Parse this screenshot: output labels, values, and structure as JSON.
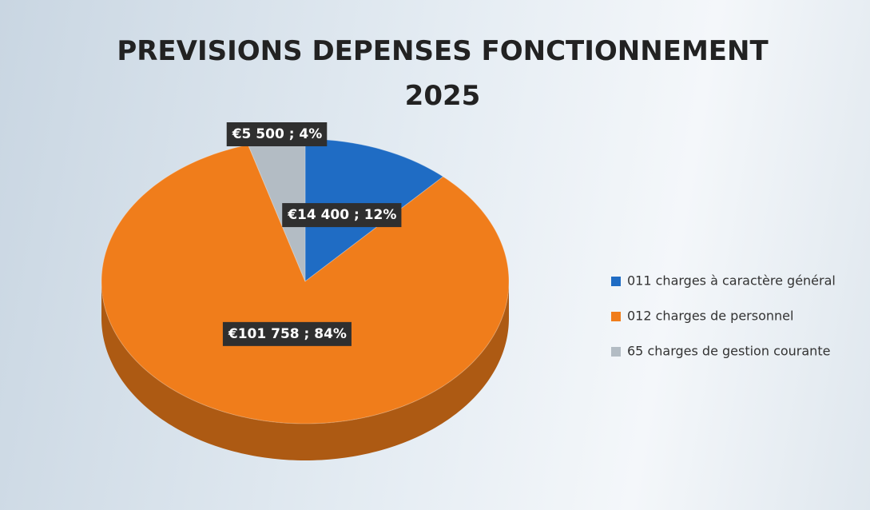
{
  "chart_data": {
    "type": "pie",
    "title": "PREVISIONS DEPENSES FONCTIONNEMENT 2025",
    "categories": [
      "011 charges à caractère général",
      "012 charges de personnel",
      "65 charges de gestion courante"
    ],
    "values": [
      14400,
      101758,
      5500
    ],
    "value_labels": [
      "€14 400 ; 12%",
      "€101 758 ; 84%",
      "€5 500 ; 4%"
    ],
    "colors": [
      "#1f6cc4",
      "#f07d1b",
      "#b3bcc4"
    ],
    "legend": "right"
  }
}
